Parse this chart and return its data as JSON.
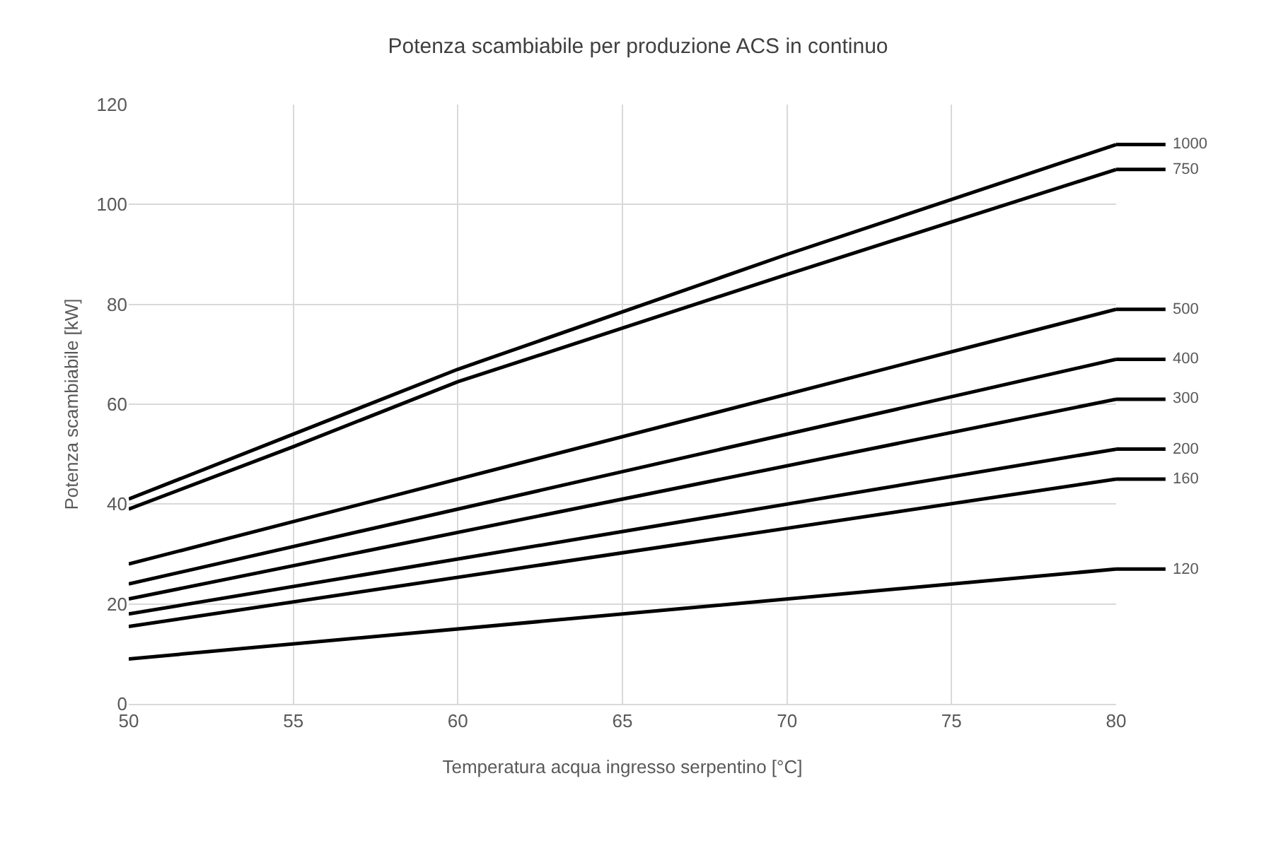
{
  "chart_data": {
    "type": "line",
    "title": "Potenza scambiabile per produzione ACS in continuo",
    "xlabel": "Temperatura acqua ingresso serpentino [°C]",
    "ylabel": "Potenza scambiabile [kW]",
    "series": [
      {
        "name": "1000",
        "color": "#000000",
        "x": [
          50,
          55,
          60,
          70,
          80
        ],
        "values": [
          41,
          54,
          67,
          90,
          112
        ]
      },
      {
        "name": "750",
        "color": "#000000",
        "x": [
          50,
          55,
          60,
          70,
          80
        ],
        "values": [
          39,
          51.5,
          64.5,
          86,
          107
        ]
      },
      {
        "name": "500",
        "color": "#000000",
        "x": [
          50,
          80
        ],
        "values": [
          28,
          79
        ]
      },
      {
        "name": "400",
        "color": "#000000",
        "x": [
          50,
          80
        ],
        "values": [
          24,
          69
        ]
      },
      {
        "name": "300",
        "color": "#000000",
        "x": [
          50,
          80
        ],
        "values": [
          21,
          61
        ]
      },
      {
        "name": "200",
        "color": "#000000",
        "x": [
          50,
          80
        ],
        "values": [
          18,
          51
        ]
      },
      {
        "name": "160",
        "color": "#000000",
        "x": [
          50,
          80
        ],
        "values": [
          15.5,
          45
        ]
      },
      {
        "name": "120",
        "color": "#000000",
        "x": [
          50,
          80
        ],
        "values": [
          9,
          27
        ]
      }
    ],
    "xlim": [
      50,
      80
    ],
    "xticks": [
      50,
      55,
      60,
      65,
      70,
      75,
      80
    ],
    "ylim": [
      0,
      120
    ],
    "yticks": [
      0,
      20,
      40,
      60,
      80,
      100,
      120
    ],
    "grid": true,
    "legend": "right",
    "marker": "none",
    "line_style": "solid"
  }
}
